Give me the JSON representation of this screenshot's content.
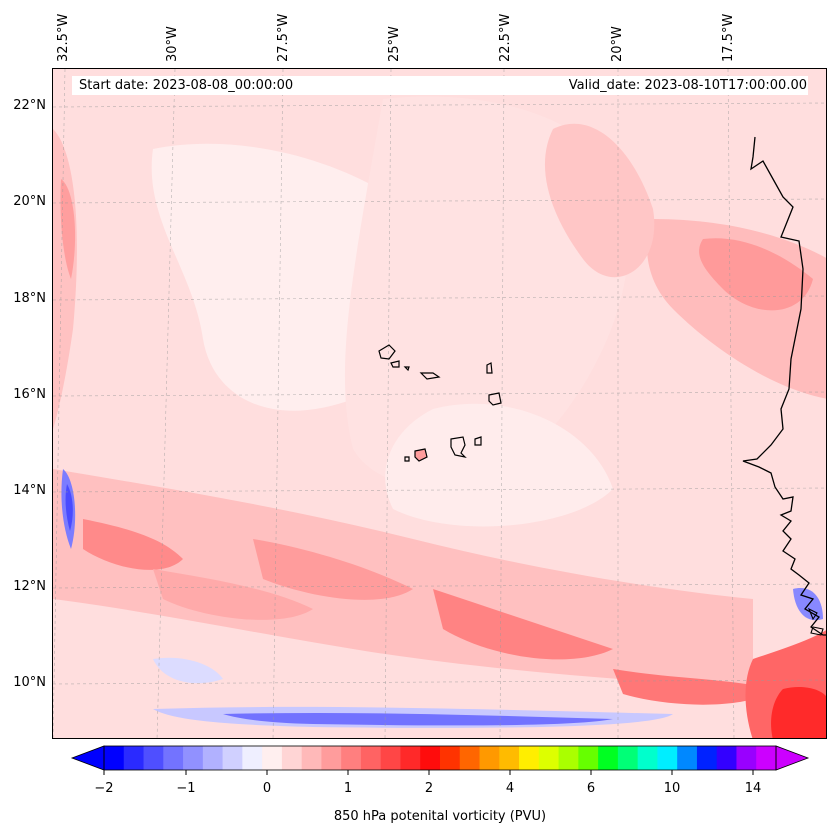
{
  "map": {
    "start_label": "Start date: 2023-08-08_00:00:00",
    "valid_label": "Valid_date: 2023-08-10T17:00:00.00",
    "lon_ticks": [
      "32.5°W",
      "30°W",
      "27.5°W",
      "25°W",
      "22.5°W",
      "20°W",
      "17.5°W"
    ],
    "lat_ticks": [
      "22°N",
      "20°N",
      "18°N",
      "16°N",
      "14°N",
      "12°N",
      "10°N"
    ],
    "coastline_color": "#000000",
    "gridlines": true
  },
  "colorbar": {
    "label": "850 hPa potenital vorticity (PVU)",
    "tick_labels": [
      "−2",
      "−1",
      "0",
      "1",
      "2",
      "4",
      "6",
      "10",
      "14"
    ],
    "colors": [
      "#0000ff",
      "#2a2aff",
      "#4f4fff",
      "#7373ff",
      "#9191ff",
      "#b1b1ff",
      "#d0d0ff",
      "#efefff",
      "#ffefef",
      "#ffd5d5",
      "#ffb9b9",
      "#ff9c9c",
      "#ff7f7f",
      "#ff6363",
      "#ff4646",
      "#ff2929",
      "#ff0c0c",
      "#ff3300",
      "#ff6600",
      "#ff9900",
      "#ffbb00",
      "#ffee00",
      "#ddff00",
      "#aaff00",
      "#66ff00",
      "#00ff22",
      "#00ff77",
      "#00ffcc",
      "#00eeff",
      "#0088ff",
      "#0022ff",
      "#3300ff",
      "#9900ff",
      "#cc00ff"
    ],
    "min_color": "#0000ff",
    "max_color": "#cc00ff"
  }
}
